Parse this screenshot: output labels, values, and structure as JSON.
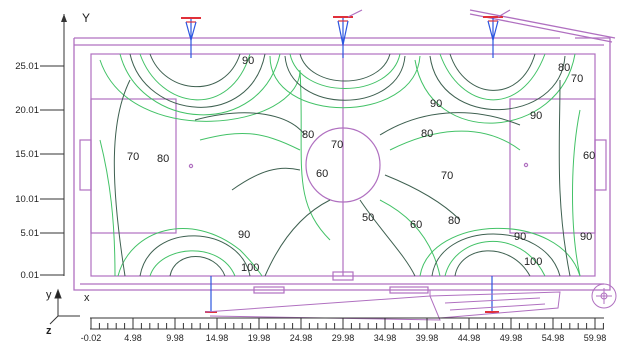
{
  "axes": {
    "y_axis_label": "Y",
    "x_axis_label": "X",
    "corner_axis": {
      "y": "y",
      "x": "x",
      "z": "z"
    },
    "y_tick_labels": [
      "25.01",
      "20.01",
      "15.01",
      "10.01",
      "5.01",
      "0.01"
    ],
    "x_tick_labels": [
      "-0.02",
      "4.98",
      "9.98",
      "14.98",
      "19.98",
      "24.98",
      "29.98",
      "34.98",
      "39.98",
      "44.98",
      "49.98",
      "54.98",
      "59.98"
    ]
  },
  "contour_labels": [
    "90",
    "90",
    "80",
    "70",
    "90",
    "80",
    "70",
    "80",
    "80",
    "70",
    "60",
    "70",
    "50",
    "60",
    "80",
    "90",
    "90",
    "90",
    "100",
    "100",
    "60"
  ],
  "colors": {
    "field_line": "#b070c0",
    "contour_dark": "#3e6050",
    "contour_light": "#43c267",
    "pole_blue": "#2b56e0",
    "pole_red": "#e0303a"
  },
  "icons": [
    "floodlight-pole-icon",
    "axis-triad-icon",
    "compass-icon"
  ]
}
